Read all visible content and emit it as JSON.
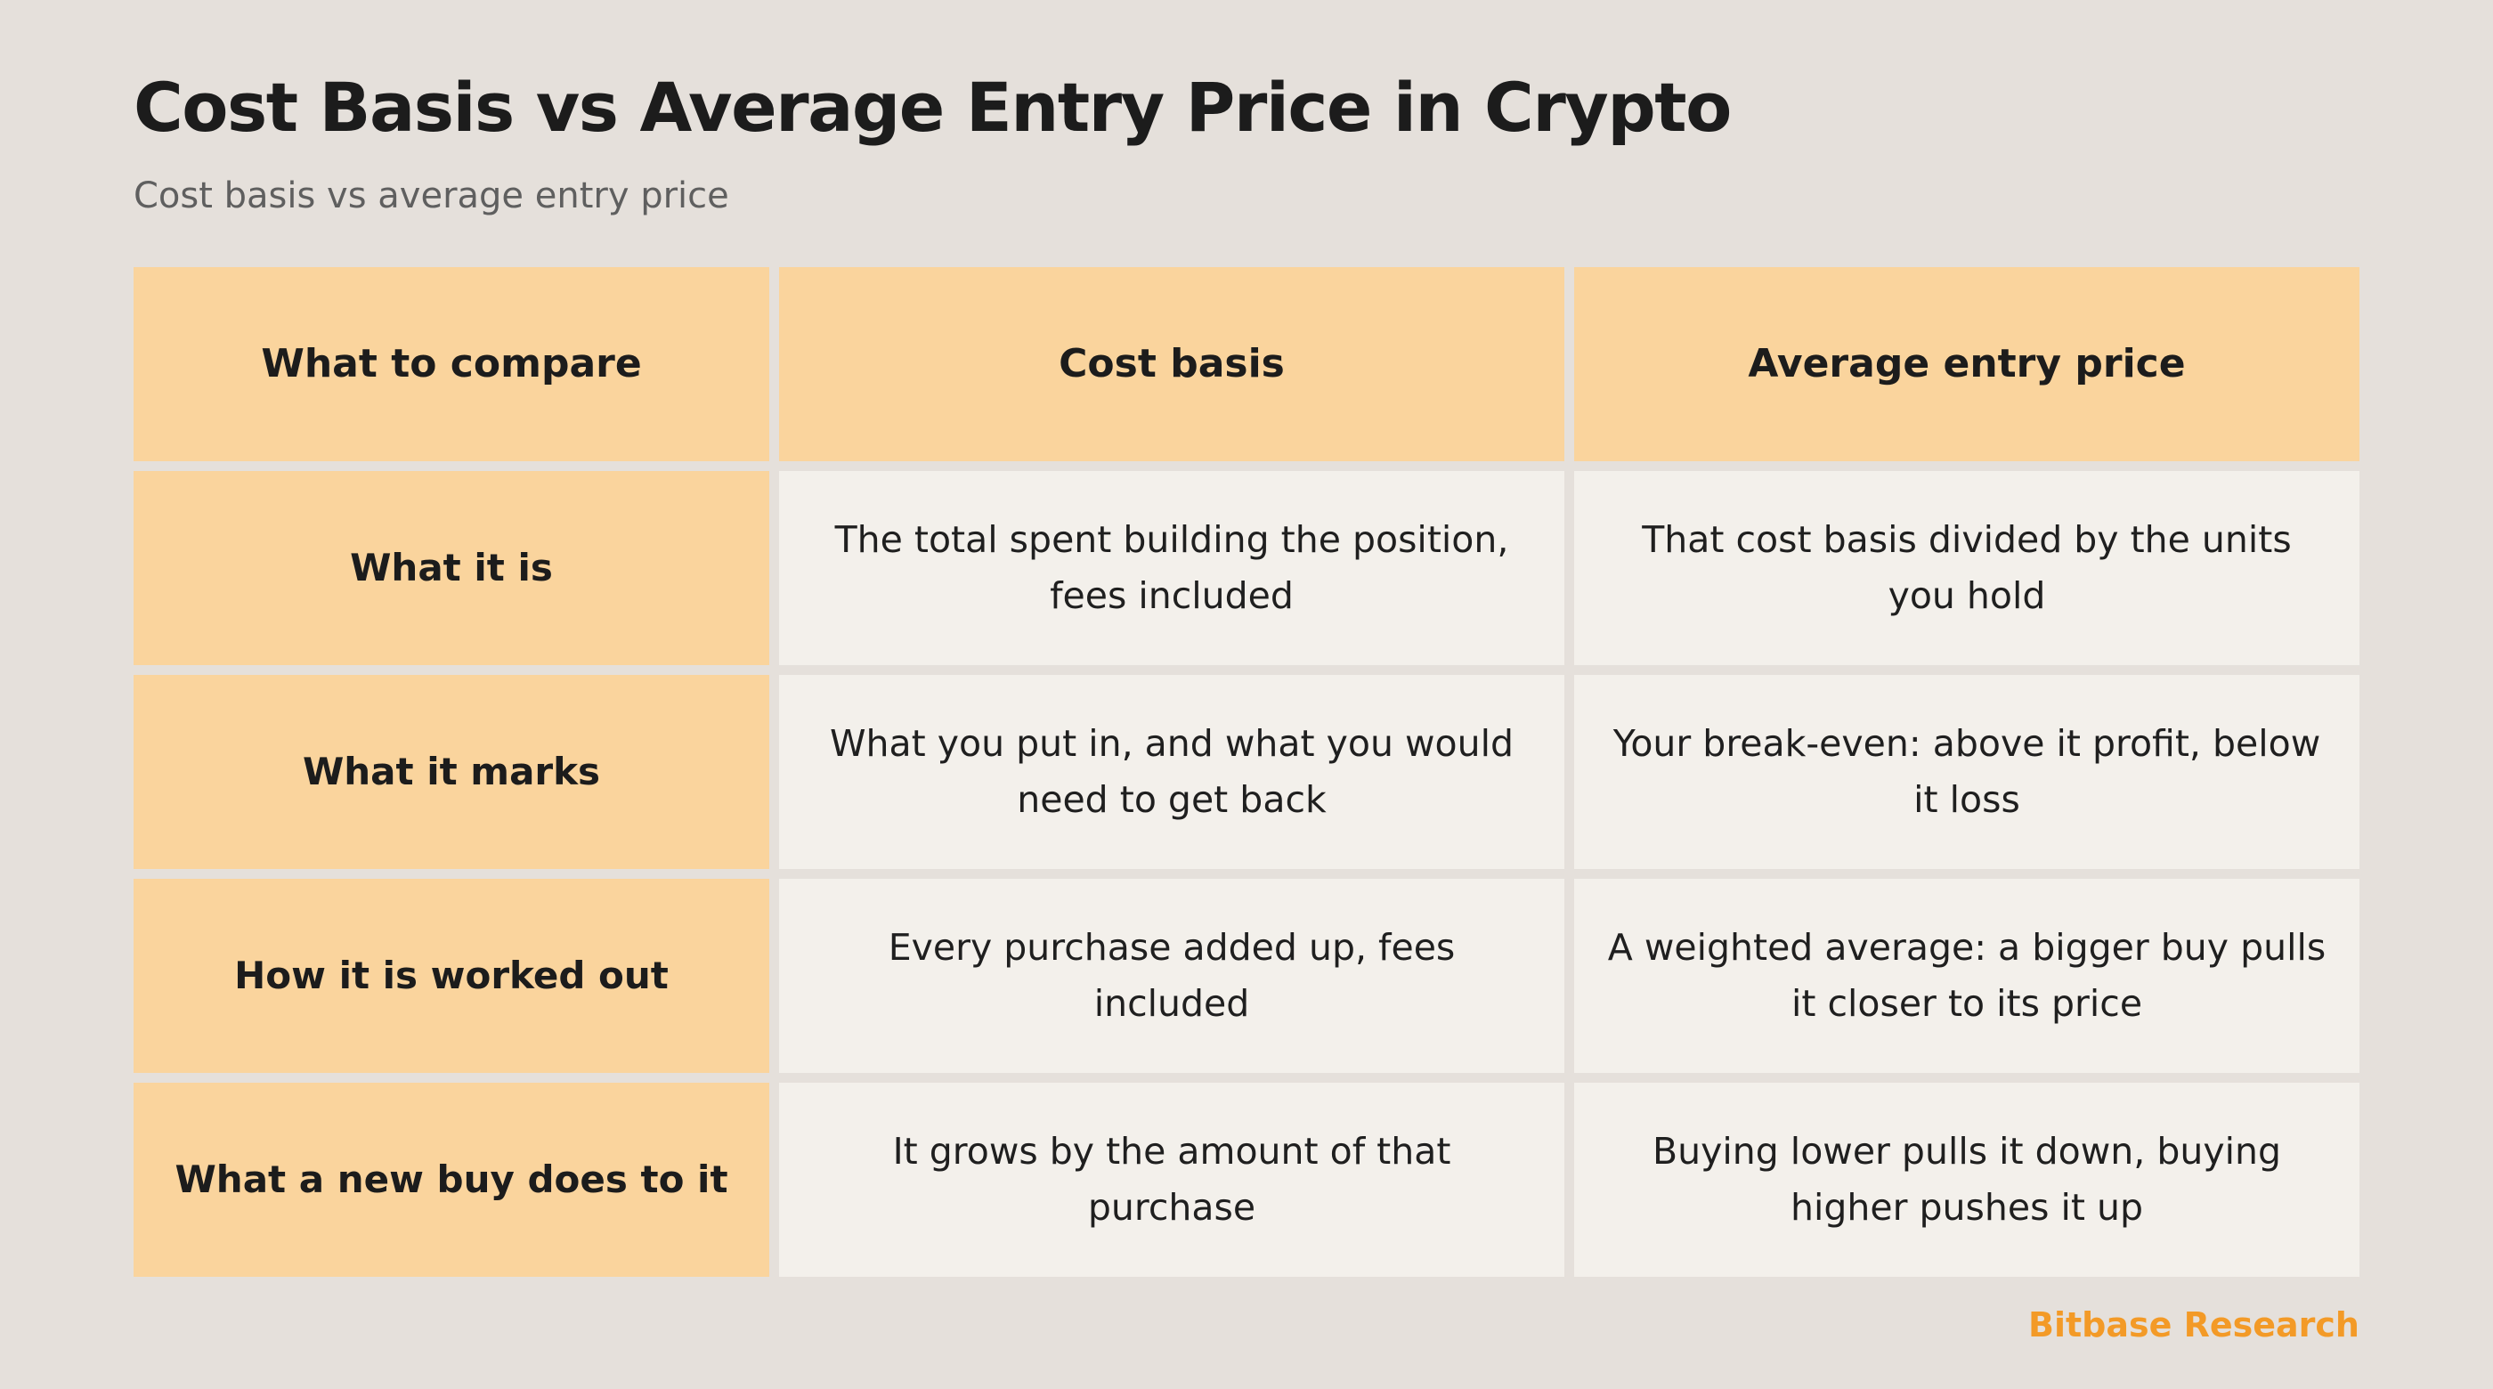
{
  "title": "Cost Basis vs Average Entry Price in Crypto",
  "subtitle": "Cost basis vs average entry price",
  "table": {
    "headers": [
      "What to compare",
      "Cost basis",
      "Average entry price"
    ],
    "rows": [
      {
        "label": "What it is",
        "cost_basis": "The total spent building the position, fees included",
        "average_entry": "That cost basis divided by the units you hold"
      },
      {
        "label": "What it marks",
        "cost_basis": "What you put in, and what you would need to get back",
        "average_entry": "Your break-even: above it profit, below it loss"
      },
      {
        "label": "How it is worked out",
        "cost_basis": "Every purchase added up, fees included",
        "average_entry": "A weighted average: a bigger buy pulls it closer to its price"
      },
      {
        "label": "What a new buy does to it",
        "cost_basis": "It grows by the amount of that purchase",
        "average_entry": "Buying lower pulls it down, buying higher pushes it up"
      }
    ]
  },
  "brand": "Bitbase Research",
  "colors": {
    "background": "#e5e0db",
    "header_fill": "#fad49d",
    "body_fill": "#f3f0eb",
    "brand_accent": "#f39a27"
  }
}
